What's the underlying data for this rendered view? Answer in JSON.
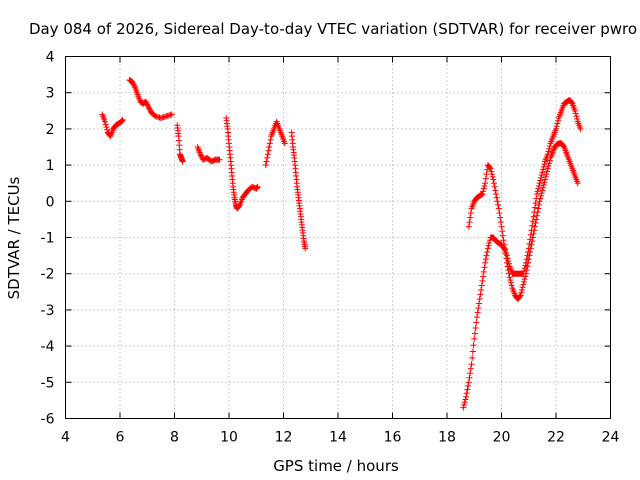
{
  "chart_data": {
    "type": "scatter",
    "title": "Day 084 of 2026, Sidereal Day-to-day VTEC variation (SDTVAR) for receiver pwro",
    "xlabel": "GPS time / hours",
    "ylabel": "SDTVAR / TECUs",
    "xlim": [
      4,
      24
    ],
    "ylim": [
      -6,
      4
    ],
    "xticks": [
      4,
      6,
      8,
      10,
      12,
      14,
      16,
      18,
      20,
      22,
      24
    ],
    "yticks": [
      -6,
      -5,
      -4,
      -3,
      -2,
      -1,
      0,
      1,
      2,
      3,
      4
    ],
    "grid": true,
    "marker": "+",
    "color": "#ff0000",
    "series": [
      {
        "name": "pwro",
        "segments": [
          [
            [
              5.35,
              2.4
            ],
            [
              5.45,
              2.2
            ],
            [
              5.55,
              1.9
            ],
            [
              5.65,
              1.8
            ],
            [
              5.75,
              2.0
            ],
            [
              5.85,
              2.1
            ],
            [
              5.95,
              2.15
            ],
            [
              6.05,
              2.2
            ],
            [
              6.1,
              2.25
            ]
          ],
          [
            [
              6.35,
              3.35
            ],
            [
              6.45,
              3.3
            ],
            [
              6.55,
              3.15
            ],
            [
              6.65,
              2.95
            ],
            [
              6.75,
              2.75
            ],
            [
              6.85,
              2.7
            ],
            [
              6.95,
              2.75
            ],
            [
              7.05,
              2.6
            ],
            [
              7.15,
              2.45
            ],
            [
              7.3,
              2.35
            ],
            [
              7.5,
              2.3
            ],
            [
              7.7,
              2.35
            ],
            [
              7.9,
              2.4
            ]
          ],
          [
            [
              8.1,
              2.1
            ],
            [
              8.15,
              1.8
            ],
            [
              8.2,
              1.3
            ],
            [
              8.25,
              1.2
            ],
            [
              8.3,
              1.1
            ]
          ],
          [
            [
              8.85,
              1.5
            ],
            [
              8.95,
              1.3
            ],
            [
              9.05,
              1.15
            ],
            [
              9.2,
              1.2
            ],
            [
              9.35,
              1.1
            ],
            [
              9.5,
              1.15
            ],
            [
              9.65,
              1.15
            ]
          ],
          [
            [
              9.9,
              2.3
            ],
            [
              9.95,
              2.0
            ],
            [
              10.0,
              1.6
            ],
            [
              10.05,
              1.2
            ],
            [
              10.1,
              0.8
            ],
            [
              10.15,
              0.4
            ],
            [
              10.2,
              0.1
            ],
            [
              10.25,
              -0.1
            ],
            [
              10.3,
              -0.2
            ],
            [
              10.4,
              -0.1
            ],
            [
              10.5,
              0.1
            ],
            [
              10.6,
              0.2
            ],
            [
              10.7,
              0.3
            ],
            [
              10.85,
              0.4
            ],
            [
              11.0,
              0.35
            ],
            [
              11.05,
              0.4
            ]
          ],
          [
            [
              11.35,
              1.0
            ],
            [
              11.45,
              1.4
            ],
            [
              11.55,
              1.8
            ],
            [
              11.65,
              2.0
            ],
            [
              11.75,
              2.2
            ],
            [
              11.85,
              2.0
            ],
            [
              11.95,
              1.8
            ],
            [
              12.05,
              1.6
            ]
          ],
          [
            [
              12.3,
              1.9
            ],
            [
              12.35,
              1.5
            ],
            [
              12.4,
              1.2
            ],
            [
              12.45,
              0.8
            ],
            [
              12.5,
              0.4
            ],
            [
              12.55,
              0.1
            ],
            [
              12.6,
              -0.2
            ],
            [
              12.65,
              -0.5
            ],
            [
              12.7,
              -0.8
            ],
            [
              12.75,
              -1.1
            ],
            [
              12.8,
              -1.3
            ]
          ],
          [
            [
              18.6,
              -5.7
            ],
            [
              18.7,
              -5.4
            ],
            [
              18.8,
              -5.0
            ],
            [
              18.9,
              -4.5
            ],
            [
              19.0,
              -3.8
            ],
            [
              19.1,
              -3.2
            ],
            [
              19.2,
              -2.7
            ],
            [
              19.3,
              -2.2
            ],
            [
              19.4,
              -1.7
            ],
            [
              19.5,
              -1.3
            ],
            [
              19.6,
              -1.0
            ],
            [
              19.7,
              -1.0
            ],
            [
              19.8,
              -1.1
            ],
            [
              19.9,
              -1.15
            ],
            [
              20.0,
              -1.2
            ],
            [
              20.1,
              -1.3
            ],
            [
              20.2,
              -1.5
            ],
            [
              20.3,
              -1.8
            ],
            [
              20.4,
              -2.0
            ],
            [
              20.5,
              -2.0
            ],
            [
              20.6,
              -2.0
            ],
            [
              20.7,
              -2.0
            ],
            [
              20.8,
              -2.0
            ],
            [
              20.9,
              -1.7
            ],
            [
              21.0,
              -1.3
            ],
            [
              21.1,
              -0.8
            ],
            [
              21.2,
              -0.3
            ],
            [
              21.3,
              0.2
            ],
            [
              21.4,
              0.5
            ],
            [
              21.5,
              0.8
            ],
            [
              21.6,
              1.1
            ],
            [
              21.7,
              1.3
            ],
            [
              21.8,
              1.6
            ],
            [
              21.9,
              1.8
            ],
            [
              22.0,
              2.0
            ],
            [
              22.1,
              2.3
            ],
            [
              22.2,
              2.5
            ],
            [
              22.3,
              2.7
            ],
            [
              22.4,
              2.75
            ],
            [
              22.5,
              2.8
            ],
            [
              22.6,
              2.7
            ],
            [
              22.7,
              2.5
            ],
            [
              22.8,
              2.2
            ],
            [
              22.9,
              2.0
            ]
          ],
          [
            [
              18.8,
              -0.7
            ],
            [
              18.9,
              -0.2
            ],
            [
              19.0,
              0.0
            ],
            [
              19.1,
              0.1
            ],
            [
              19.2,
              0.15
            ],
            [
              19.3,
              0.2
            ],
            [
              19.4,
              0.5
            ],
            [
              19.5,
              1.0
            ],
            [
              19.6,
              0.9
            ],
            [
              19.7,
              0.6
            ],
            [
              19.8,
              0.2
            ],
            [
              19.9,
              -0.2
            ],
            [
              20.0,
              -0.7
            ],
            [
              20.1,
              -1.2
            ],
            [
              20.2,
              -1.7
            ],
            [
              20.3,
              -2.1
            ],
            [
              20.4,
              -2.4
            ],
            [
              20.5,
              -2.6
            ],
            [
              20.6,
              -2.7
            ],
            [
              20.7,
              -2.6
            ],
            [
              20.8,
              -2.3
            ],
            [
              20.9,
              -2.0
            ],
            [
              21.0,
              -1.6
            ],
            [
              21.1,
              -1.2
            ],
            [
              21.2,
              -0.8
            ],
            [
              21.3,
              -0.4
            ],
            [
              21.4,
              0.0
            ],
            [
              21.5,
              0.3
            ],
            [
              21.6,
              0.6
            ],
            [
              21.7,
              0.9
            ],
            [
              21.8,
              1.2
            ],
            [
              21.9,
              1.4
            ],
            [
              22.0,
              1.55
            ],
            [
              22.1,
              1.6
            ],
            [
              22.2,
              1.6
            ],
            [
              22.3,
              1.5
            ],
            [
              22.4,
              1.3
            ],
            [
              22.5,
              1.1
            ],
            [
              22.6,
              0.9
            ],
            [
              22.7,
              0.7
            ],
            [
              22.8,
              0.5
            ]
          ]
        ]
      }
    ]
  }
}
